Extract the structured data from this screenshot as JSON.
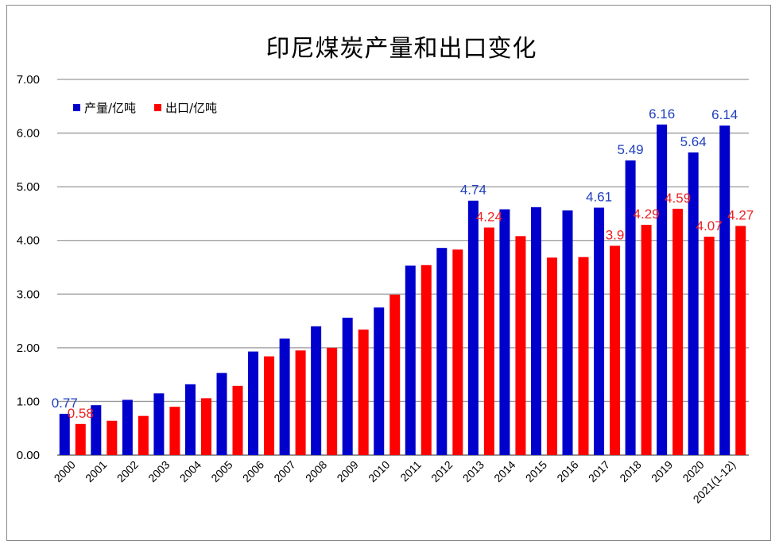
{
  "chart_data": {
    "type": "bar",
    "title": "印尼煤炭产量和出口变化",
    "categories": [
      "2000",
      "2001",
      "2002",
      "2003",
      "2004",
      "2005",
      "2006",
      "2007",
      "2008",
      "2009",
      "2010",
      "2011",
      "2012",
      "2013",
      "2014",
      "2015",
      "2016",
      "2017",
      "2018",
      "2019",
      "2020",
      "2021(1-12)"
    ],
    "series": [
      {
        "name": "产量/亿吨",
        "color": "#0000cc",
        "values": [
          0.77,
          0.93,
          1.03,
          1.15,
          1.32,
          1.53,
          1.93,
          2.17,
          2.4,
          2.56,
          2.75,
          3.53,
          3.86,
          4.74,
          4.58,
          4.62,
          4.56,
          4.61,
          5.49,
          6.16,
          5.64,
          6.14
        ],
        "labels": {
          "0": "0.77",
          "13": "4.74",
          "17": "4.61",
          "18": "5.49",
          "19": "6.16",
          "20": "5.64",
          "21": "6.14"
        },
        "label_color": "#1f3fbf"
      },
      {
        "name": "出口/亿吨",
        "color": "#ff0000",
        "values": [
          0.58,
          0.64,
          0.73,
          0.9,
          1.06,
          1.29,
          1.84,
          1.95,
          2.0,
          2.34,
          2.99,
          3.54,
          3.83,
          4.24,
          4.08,
          3.68,
          3.69,
          3.9,
          4.29,
          4.59,
          4.07,
          4.27
        ],
        "labels": {
          "0": "0.58",
          "13": "4.24",
          "17": "3.9",
          "18": "4.29",
          "19": "4.59",
          "20": "4.07",
          "21": "4.27"
        },
        "label_color": "#ee2222"
      }
    ],
    "ylim": [
      0,
      7
    ],
    "yticks": [
      "0.00",
      "1.00",
      "2.00",
      "3.00",
      "4.00",
      "5.00",
      "6.00",
      "7.00"
    ],
    "grid": true,
    "legend": "top-left"
  }
}
